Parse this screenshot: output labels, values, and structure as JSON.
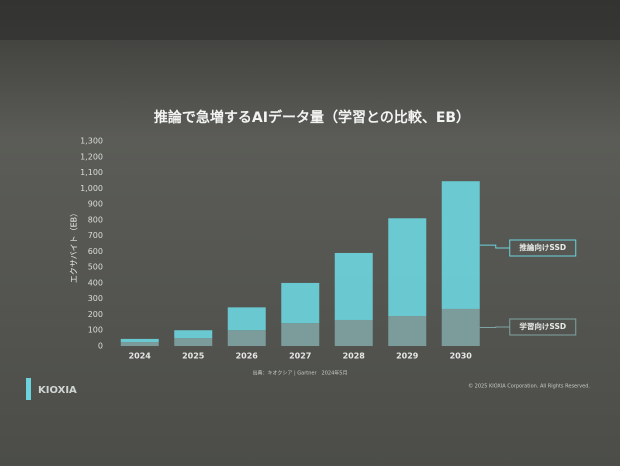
{
  "chart_data": {
    "type": "stacked-bar",
    "title": "推論で急増するAIデータ量（学習との比較、EB）",
    "y_label": "エクサバイト（EB）",
    "categories": [
      "2024",
      "2025",
      "2026",
      "2027",
      "2028",
      "2029",
      "2030"
    ],
    "series": [
      {
        "name": "学習向けSSD",
        "color": "#7fa3a2",
        "values": [
          25,
          50,
          100,
          145,
          165,
          190,
          235
        ]
      },
      {
        "name": "推論向けSSD",
        "color": "#6cd3dc",
        "values": [
          20,
          50,
          145,
          255,
          425,
          620,
          810
        ]
      }
    ],
    "ylim": [
      0,
      1300
    ],
    "yticks": [
      0,
      100,
      200,
      300,
      400,
      500,
      600,
      700,
      800,
      900,
      {
        "value": 1000,
        "label": "1,000"
      },
      {
        "value": 1100,
        "label": "1,100"
      },
      {
        "value": 1200,
        "label": "1,200"
      },
      {
        "value": 1300,
        "label": "1,300"
      }
    ],
    "source": "出典：キオクシア | Gartner　2024年5月",
    "logo": "KIOXIA",
    "copyright": "© 2025 KIOXIA Corporation. All Rights Reserved."
  }
}
